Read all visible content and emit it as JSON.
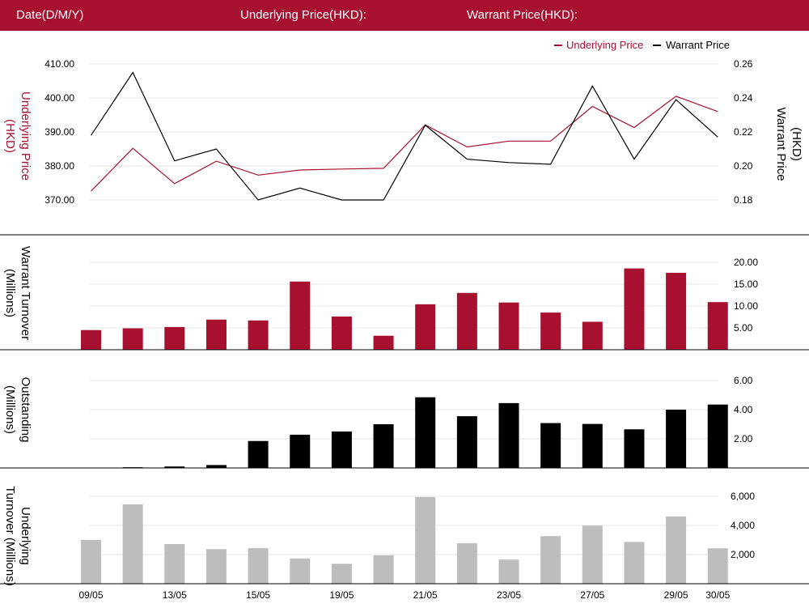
{
  "header": {
    "date_label": "Date(D/M/Y)",
    "underlying_label": "Underlying Price(HKD):",
    "warrant_label": "Warrant Price(HKD):"
  },
  "colors": {
    "header_bg": "#a8102f",
    "underlying": "#a8102f",
    "warrant": "#000000",
    "underlying_turnover": "#bdbdbd",
    "grid": "#e5e5e5"
  },
  "chart_data": [
    {
      "type": "line",
      "x_positions": [
        0,
        1,
        2,
        3,
        4,
        5,
        6,
        7,
        8,
        9,
        10,
        11,
        12,
        13,
        14,
        15
      ],
      "legend": [
        "Underlying Price",
        "Warrant Price"
      ],
      "legend_position": "top-right",
      "ylabel_left": "Underlying Price (HKD)",
      "ylabel_right": "Warrant  Price (HKD)",
      "y_left_ticks": [
        "410.00",
        "400.00",
        "390.00",
        "380.00",
        "370.00"
      ],
      "y_left_range": [
        370,
        410
      ],
      "y_right_ticks": [
        "0.26",
        "0.24",
        "0.22",
        "0.20",
        "0.18"
      ],
      "y_right_range": [
        0.18,
        0.26
      ],
      "series": [
        {
          "name": "Underlying Price",
          "axis": "left",
          "values": [
            372.6,
            385.2,
            374.8,
            381.4,
            377.3,
            378.8,
            379.1,
            379.3,
            392.1,
            385.6,
            387.3,
            387.3,
            397.5,
            391.3,
            400.5,
            396.0
          ]
        },
        {
          "name": "Warrant Price",
          "axis": "right",
          "values": [
            0.218,
            0.255,
            0.203,
            0.21,
            0.18,
            0.187,
            0.18,
            0.18,
            0.224,
            0.204,
            0.202,
            0.201,
            0.247,
            0.204,
            0.239,
            0.217
          ]
        }
      ]
    },
    {
      "type": "bar",
      "ylabel": "Warrant  Turnover (Millions)",
      "y_ticks": [
        "20.00",
        "15.00",
        "10.00",
        "5.00"
      ],
      "y_range": [
        0,
        20
      ],
      "series": [
        {
          "values": [
            4.5,
            4.9,
            5.2,
            6.9,
            6.7,
            15.6,
            7.6,
            3.2,
            10.4,
            13.0,
            10.8,
            8.5,
            6.4,
            18.6,
            17.6,
            10.9
          ]
        }
      ]
    },
    {
      "type": "bar",
      "ylabel": "Outstanding (Millions)",
      "y_ticks": [
        "6.00",
        "4.00",
        "2.00"
      ],
      "y_range": [
        0,
        6
      ],
      "series": [
        {
          "values": [
            0,
            0.05,
            0.1,
            0.2,
            1.85,
            2.28,
            2.5,
            3.0,
            4.85,
            3.55,
            4.45,
            3.08,
            3.02,
            2.65,
            4.0,
            4.35
          ]
        }
      ]
    },
    {
      "type": "bar",
      "ylabel": "Underlying Turnover (Millions)",
      "y_ticks": [
        "6,000",
        "4,000",
        "2,000"
      ],
      "y_range": [
        0,
        6000
      ],
      "x_tick_labels": [
        "09/05",
        "13/05",
        "15/05",
        "19/05",
        "21/05",
        "23/05",
        "27/05",
        "29/05",
        "30/05"
      ],
      "x_tick_indices": [
        0,
        2,
        4,
        6,
        8,
        10,
        12,
        14,
        15
      ],
      "series": [
        {
          "values": [
            3000,
            5450,
            2720,
            2370,
            2440,
            1730,
            1370,
            1950,
            5950,
            2780,
            1660,
            3270,
            3980,
            2870,
            4620,
            2430
          ]
        }
      ]
    }
  ]
}
